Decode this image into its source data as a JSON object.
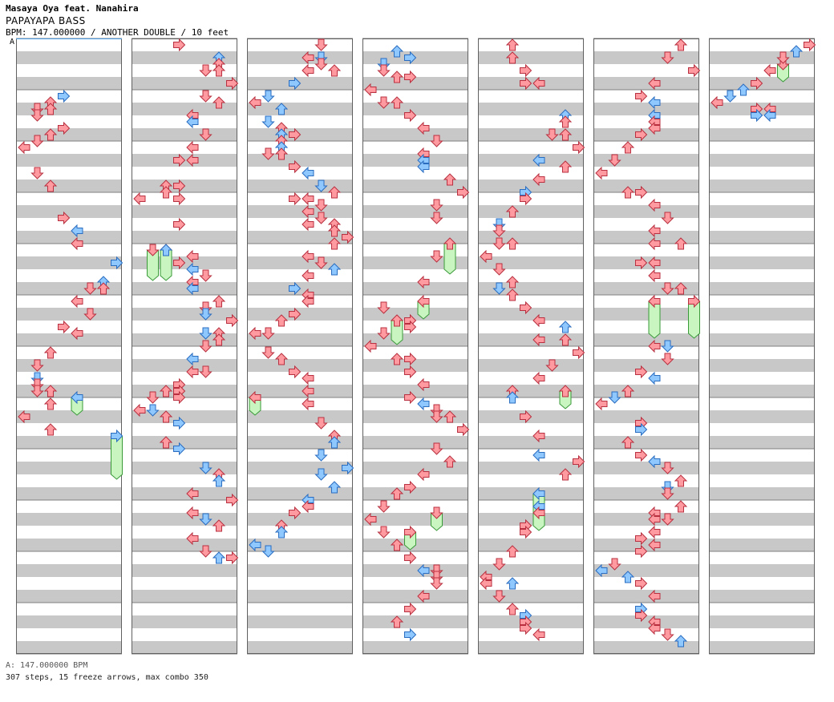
{
  "header": {
    "artist": "Masaya Oya feat. Nanahira",
    "title": "PAPAYAPA BASS",
    "info": "BPM: 147.000000 / ANOTHER DOUBLE / 10 feet",
    "bpm_marker": "A"
  },
  "footer": {
    "bpm_line": "A: 147.000000 BPM",
    "stats": "307 steps, 15 freeze arrows, max combo 350"
  },
  "colors": {
    "note_red": "#ff9aa0",
    "note_red_stroke": "#b83040",
    "note_blue": "#8ec8ff",
    "note_blue_stroke": "#2a6cc0",
    "freeze": "#c8f5c0",
    "freeze_stroke": "#3a9a3a",
    "band_gray": "#c8c8c8",
    "measure_line": "#808080"
  },
  "notes": [
    [
      0,
      8,
      3,
      "blue"
    ],
    [
      0,
      9,
      2,
      "red"
    ],
    [
      0,
      10,
      1,
      "red"
    ],
    [
      0,
      10,
      2,
      "red"
    ],
    [
      0,
      11,
      1,
      "red"
    ],
    [
      0,
      13,
      3,
      "red"
    ],
    [
      0,
      14,
      2,
      "red"
    ],
    [
      0,
      15,
      1,
      "red"
    ],
    [
      0,
      16,
      0,
      "red"
    ],
    [
      0,
      20,
      1,
      "red"
    ],
    [
      0,
      22,
      2,
      "red"
    ],
    [
      0,
      27,
      3,
      "red"
    ],
    [
      0,
      29,
      4,
      "blue"
    ],
    [
      0,
      31,
      4,
      "red"
    ],
    [
      0,
      34,
      7,
      "blue"
    ],
    [
      0,
      37,
      6,
      "blue"
    ],
    [
      0,
      38,
      5,
      "red"
    ],
    [
      0,
      38,
      6,
      "red"
    ],
    [
      0,
      40,
      4,
      "red"
    ],
    [
      0,
      42,
      5,
      "red"
    ],
    [
      0,
      44,
      3,
      "red"
    ],
    [
      0,
      45,
      4,
      "red"
    ],
    [
      0,
      48,
      2,
      "red"
    ],
    [
      0,
      50,
      1,
      "red"
    ],
    [
      0,
      52,
      1,
      "blue"
    ],
    [
      0,
      53,
      1,
      "red"
    ],
    [
      0,
      54,
      1,
      "red"
    ],
    [
      0,
      54,
      2,
      "red"
    ],
    [
      0,
      56,
      2,
      "red"
    ],
    [
      0,
      58,
      0,
      "red"
    ],
    [
      0,
      60,
      2,
      "red"
    ],
    [
      1,
      0,
      3,
      "red"
    ],
    [
      1,
      2,
      6,
      "blue"
    ],
    [
      1,
      3,
      6,
      "red"
    ],
    [
      1,
      4,
      5,
      "red"
    ],
    [
      1,
      4,
      6,
      "red"
    ],
    [
      1,
      6,
      7,
      "red"
    ],
    [
      1,
      8,
      5,
      "red"
    ],
    [
      1,
      9,
      6,
      "red"
    ],
    [
      1,
      11,
      4,
      "red"
    ],
    [
      1,
      12,
      4,
      "blue"
    ],
    [
      1,
      14,
      5,
      "red"
    ],
    [
      1,
      16,
      4,
      "red"
    ],
    [
      1,
      18,
      3,
      "red"
    ],
    [
      1,
      18,
      4,
      "red"
    ],
    [
      1,
      22,
      2,
      "red"
    ],
    [
      1,
      22,
      3,
      "red"
    ],
    [
      1,
      23,
      2,
      "red"
    ],
    [
      1,
      24,
      0,
      "red"
    ],
    [
      1,
      24,
      3,
      "red"
    ],
    [
      1,
      28,
      3,
      "red"
    ],
    [
      1,
      32,
      2,
      "blue"
    ],
    [
      1,
      33,
      4,
      "red"
    ],
    [
      1,
      34,
      3,
      "red"
    ],
    [
      1,
      35,
      4,
      "blue"
    ],
    [
      1,
      36,
      5,
      "red"
    ],
    [
      1,
      37,
      4,
      "red"
    ],
    [
      1,
      38,
      4,
      "blue"
    ],
    [
      1,
      40,
      6,
      "red"
    ],
    [
      1,
      41,
      5,
      "red"
    ],
    [
      1,
      42,
      5,
      "blue"
    ],
    [
      1,
      43,
      7,
      "red"
    ],
    [
      1,
      45,
      5,
      "blue"
    ],
    [
      1,
      45,
      6,
      "red"
    ],
    [
      1,
      46,
      6,
      "red"
    ],
    [
      1,
      47,
      5,
      "red"
    ],
    [
      1,
      49,
      4,
      "blue"
    ],
    [
      1,
      51,
      4,
      "red"
    ],
    [
      1,
      51,
      5,
      "red"
    ],
    [
      1,
      53,
      3,
      "red"
    ],
    [
      1,
      54,
      2,
      "red"
    ],
    [
      1,
      54,
      3,
      "red"
    ],
    [
      1,
      55,
      1,
      "red"
    ],
    [
      1,
      55,
      3,
      "red"
    ],
    [
      1,
      57,
      0,
      "red"
    ],
    [
      1,
      57,
      1,
      "blue"
    ],
    [
      1,
      58,
      2,
      "red"
    ],
    [
      1,
      59,
      3,
      "blue"
    ],
    [
      1,
      62,
      2,
      "red"
    ],
    [
      1,
      63,
      3,
      "blue"
    ],
    [
      1,
      66,
      5,
      "blue"
    ],
    [
      1,
      67,
      6,
      "red"
    ],
    [
      1,
      68,
      6,
      "blue"
    ],
    [
      1,
      70,
      4,
      "red"
    ],
    [
      1,
      71,
      7,
      "red"
    ],
    [
      1,
      73,
      4,
      "red"
    ],
    [
      1,
      74,
      5,
      "blue"
    ],
    [
      1,
      75,
      6,
      "red"
    ],
    [
      1,
      77,
      4,
      "red"
    ],
    [
      1,
      79,
      5,
      "red"
    ],
    [
      1,
      80,
      7,
      "red"
    ],
    [
      1,
      80,
      6,
      "blue"
    ],
    [
      2,
      0,
      5,
      "red"
    ],
    [
      2,
      2,
      4,
      "red"
    ],
    [
      2,
      2,
      5,
      "blue"
    ],
    [
      2,
      3,
      5,
      "red"
    ],
    [
      2,
      4,
      4,
      "red"
    ],
    [
      2,
      4,
      6,
      "red"
    ],
    [
      2,
      6,
      3,
      "blue"
    ],
    [
      2,
      8,
      1,
      "blue"
    ],
    [
      2,
      9,
      0,
      "red"
    ],
    [
      2,
      10,
      2,
      "blue"
    ],
    [
      2,
      12,
      1,
      "blue"
    ],
    [
      2,
      13,
      2,
      "red"
    ],
    [
      2,
      14,
      2,
      "blue"
    ],
    [
      2,
      14,
      3,
      "red"
    ],
    [
      2,
      15,
      2,
      "red"
    ],
    [
      2,
      16,
      2,
      "blue"
    ],
    [
      2,
      17,
      1,
      "red"
    ],
    [
      2,
      17,
      2,
      "red"
    ],
    [
      2,
      19,
      3,
      "red"
    ],
    [
      2,
      20,
      4,
      "blue"
    ],
    [
      2,
      22,
      5,
      "blue"
    ],
    [
      2,
      23,
      6,
      "red"
    ],
    [
      2,
      24,
      3,
      "red"
    ],
    [
      2,
      24,
      4,
      "red"
    ],
    [
      2,
      25,
      5,
      "red"
    ],
    [
      2,
      26,
      4,
      "red"
    ],
    [
      2,
      27,
      5,
      "red"
    ],
    [
      2,
      28,
      4,
      "red"
    ],
    [
      2,
      28,
      6,
      "red"
    ],
    [
      2,
      29,
      6,
      "red"
    ],
    [
      2,
      30,
      7,
      "red"
    ],
    [
      2,
      31,
      6,
      "red"
    ],
    [
      2,
      33,
      4,
      "red"
    ],
    [
      2,
      34,
      5,
      "red"
    ],
    [
      2,
      35,
      6,
      "blue"
    ],
    [
      2,
      36,
      4,
      "red"
    ],
    [
      2,
      38,
      3,
      "blue"
    ],
    [
      2,
      39,
      4,
      "red"
    ],
    [
      2,
      40,
      4,
      "red"
    ],
    [
      2,
      42,
      3,
      "red"
    ],
    [
      2,
      43,
      2,
      "red"
    ],
    [
      2,
      45,
      0,
      "red"
    ],
    [
      2,
      45,
      1,
      "red"
    ],
    [
      2,
      48,
      1,
      "red"
    ],
    [
      2,
      49,
      2,
      "red"
    ],
    [
      2,
      51,
      3,
      "red"
    ],
    [
      2,
      52,
      4,
      "red"
    ],
    [
      2,
      54,
      4,
      "red"
    ],
    [
      2,
      56,
      4,
      "red"
    ],
    [
      2,
      59,
      5,
      "red"
    ],
    [
      2,
      61,
      6,
      "red"
    ],
    [
      2,
      62,
      6,
      "blue"
    ],
    [
      2,
      64,
      5,
      "blue"
    ],
    [
      2,
      66,
      7,
      "blue"
    ],
    [
      2,
      67,
      5,
      "blue"
    ],
    [
      2,
      69,
      6,
      "blue"
    ],
    [
      2,
      71,
      4,
      "blue"
    ],
    [
      2,
      72,
      4,
      "red"
    ],
    [
      2,
      73,
      3,
      "red"
    ],
    [
      2,
      75,
      2,
      "red"
    ],
    [
      2,
      76,
      2,
      "blue"
    ],
    [
      2,
      78,
      0,
      "blue"
    ],
    [
      2,
      79,
      1,
      "blue"
    ],
    [
      3,
      1,
      2,
      "blue"
    ],
    [
      3,
      2,
      3,
      "blue"
    ],
    [
      3,
      3,
      1,
      "blue"
    ],
    [
      3,
      4,
      1,
      "red"
    ],
    [
      3,
      5,
      2,
      "red"
    ],
    [
      3,
      5,
      3,
      "red"
    ],
    [
      3,
      7,
      0,
      "red"
    ],
    [
      3,
      9,
      1,
      "red"
    ],
    [
      3,
      9,
      2,
      "red"
    ],
    [
      3,
      11,
      3,
      "red"
    ],
    [
      3,
      13,
      4,
      "red"
    ],
    [
      3,
      15,
      5,
      "red"
    ],
    [
      3,
      17,
      4,
      "red"
    ],
    [
      3,
      18,
      4,
      "blue"
    ],
    [
      3,
      19,
      4,
      "blue"
    ],
    [
      3,
      21,
      6,
      "red"
    ],
    [
      3,
      23,
      7,
      "red"
    ],
    [
      3,
      25,
      5,
      "red"
    ],
    [
      3,
      27,
      5,
      "red"
    ],
    [
      3,
      33,
      5,
      "red"
    ],
    [
      3,
      37,
      4,
      "red"
    ],
    [
      3,
      41,
      1,
      "red"
    ],
    [
      3,
      43,
      3,
      "red"
    ],
    [
      3,
      44,
      3,
      "red"
    ],
    [
      3,
      45,
      1,
      "red"
    ],
    [
      3,
      47,
      0,
      "red"
    ],
    [
      3,
      49,
      2,
      "red"
    ],
    [
      3,
      49,
      3,
      "red"
    ],
    [
      3,
      51,
      3,
      "red"
    ],
    [
      3,
      53,
      4,
      "red"
    ],
    [
      3,
      55,
      3,
      "red"
    ],
    [
      3,
      56,
      4,
      "blue"
    ],
    [
      3,
      57,
      5,
      "red"
    ],
    [
      3,
      58,
      5,
      "red"
    ],
    [
      3,
      58,
      6,
      "red"
    ],
    [
      3,
      60,
      7,
      "red"
    ],
    [
      3,
      63,
      5,
      "red"
    ],
    [
      3,
      65,
      6,
      "red"
    ],
    [
      3,
      67,
      4,
      "red"
    ],
    [
      3,
      69,
      3,
      "red"
    ],
    [
      3,
      70,
      2,
      "red"
    ],
    [
      3,
      72,
      1,
      "red"
    ],
    [
      3,
      74,
      0,
      "red"
    ],
    [
      3,
      76,
      1,
      "red"
    ],
    [
      3,
      78,
      2,
      "red"
    ],
    [
      3,
      80,
      3,
      "red"
    ],
    [
      3,
      82,
      4,
      "blue"
    ],
    [
      3,
      82,
      5,
      "red"
    ],
    [
      3,
      83,
      5,
      "red"
    ],
    [
      3,
      84,
      5,
      "red"
    ],
    [
      3,
      86,
      4,
      "red"
    ],
    [
      3,
      88,
      3,
      "red"
    ],
    [
      3,
      90,
      2,
      "red"
    ],
    [
      3,
      92,
      3,
      "blue"
    ],
    [
      4,
      0,
      2,
      "red"
    ],
    [
      4,
      2,
      2,
      "red"
    ],
    [
      4,
      4,
      3,
      "red"
    ],
    [
      4,
      6,
      3,
      "red"
    ],
    [
      4,
      6,
      4,
      "red"
    ],
    [
      4,
      11,
      6,
      "blue"
    ],
    [
      4,
      12,
      6,
      "red"
    ],
    [
      4,
      14,
      5,
      "red"
    ],
    [
      4,
      14,
      6,
      "red"
    ],
    [
      4,
      16,
      7,
      "red"
    ],
    [
      4,
      18,
      4,
      "blue"
    ],
    [
      4,
      19,
      6,
      "red"
    ],
    [
      4,
      21,
      4,
      "red"
    ],
    [
      4,
      23,
      3,
      "blue"
    ],
    [
      4,
      24,
      3,
      "red"
    ],
    [
      4,
      26,
      2,
      "red"
    ],
    [
      4,
      28,
      1,
      "blue"
    ],
    [
      4,
      29,
      1,
      "red"
    ],
    [
      4,
      31,
      1,
      "red"
    ],
    [
      4,
      31,
      2,
      "red"
    ],
    [
      4,
      33,
      0,
      "red"
    ],
    [
      4,
      35,
      1,
      "red"
    ],
    [
      4,
      37,
      2,
      "red"
    ],
    [
      4,
      38,
      1,
      "blue"
    ],
    [
      4,
      39,
      2,
      "red"
    ],
    [
      4,
      41,
      3,
      "red"
    ],
    [
      4,
      43,
      4,
      "red"
    ],
    [
      4,
      44,
      6,
      "blue"
    ],
    [
      4,
      46,
      4,
      "red"
    ],
    [
      4,
      46,
      6,
      "red"
    ],
    [
      4,
      48,
      7,
      "red"
    ],
    [
      4,
      50,
      5,
      "red"
    ],
    [
      4,
      52,
      4,
      "red"
    ],
    [
      4,
      54,
      2,
      "red"
    ],
    [
      4,
      55,
      2,
      "blue"
    ],
    [
      4,
      58,
      3,
      "red"
    ],
    [
      4,
      61,
      4,
      "red"
    ],
    [
      4,
      64,
      4,
      "blue"
    ],
    [
      4,
      65,
      7,
      "red"
    ],
    [
      4,
      67,
      6,
      "red"
    ],
    [
      4,
      72,
      4,
      "blue"
    ],
    [
      4,
      73,
      4,
      "red"
    ],
    [
      4,
      75,
      3,
      "red"
    ],
    [
      4,
      76,
      3,
      "red"
    ],
    [
      4,
      79,
      2,
      "red"
    ],
    [
      4,
      81,
      1,
      "red"
    ],
    [
      4,
      83,
      0,
      "red"
    ],
    [
      4,
      84,
      0,
      "red"
    ],
    [
      4,
      84,
      2,
      "blue"
    ],
    [
      4,
      86,
      1,
      "red"
    ],
    [
      4,
      88,
      2,
      "red"
    ],
    [
      4,
      89,
      3,
      "blue"
    ],
    [
      4,
      90,
      3,
      "red"
    ],
    [
      4,
      91,
      3,
      "red"
    ],
    [
      4,
      92,
      4,
      "red"
    ],
    [
      5,
      0,
      6,
      "red"
    ],
    [
      5,
      2,
      5,
      "red"
    ],
    [
      5,
      4,
      7,
      "red"
    ],
    [
      5,
      6,
      4,
      "red"
    ],
    [
      5,
      8,
      3,
      "red"
    ],
    [
      5,
      9,
      4,
      "blue"
    ],
    [
      5,
      11,
      4,
      "blue"
    ],
    [
      5,
      12,
      4,
      "red"
    ],
    [
      5,
      13,
      4,
      "red"
    ],
    [
      5,
      14,
      3,
      "red"
    ],
    [
      5,
      16,
      2,
      "red"
    ],
    [
      5,
      18,
      1,
      "red"
    ],
    [
      5,
      20,
      0,
      "red"
    ],
    [
      5,
      23,
      2,
      "red"
    ],
    [
      5,
      23,
      3,
      "red"
    ],
    [
      5,
      25,
      4,
      "red"
    ],
    [
      5,
      27,
      5,
      "red"
    ],
    [
      5,
      29,
      4,
      "red"
    ],
    [
      5,
      31,
      4,
      "red"
    ],
    [
      5,
      31,
      6,
      "red"
    ],
    [
      5,
      34,
      3,
      "red"
    ],
    [
      5,
      34,
      4,
      "red"
    ],
    [
      5,
      36,
      4,
      "red"
    ],
    [
      5,
      38,
      5,
      "red"
    ],
    [
      5,
      38,
      6,
      "red"
    ],
    [
      5,
      40,
      4,
      "red"
    ],
    [
      5,
      47,
      4,
      "red"
    ],
    [
      5,
      47,
      5,
      "blue"
    ],
    [
      5,
      49,
      5,
      "red"
    ],
    [
      5,
      51,
      3,
      "red"
    ],
    [
      5,
      52,
      4,
      "blue"
    ],
    [
      5,
      54,
      2,
      "red"
    ],
    [
      5,
      55,
      1,
      "blue"
    ],
    [
      5,
      56,
      0,
      "red"
    ],
    [
      5,
      59,
      3,
      "red"
    ],
    [
      5,
      60,
      3,
      "blue"
    ],
    [
      5,
      62,
      2,
      "red"
    ],
    [
      5,
      64,
      3,
      "red"
    ],
    [
      5,
      65,
      4,
      "blue"
    ],
    [
      5,
      66,
      5,
      "red"
    ],
    [
      5,
      68,
      6,
      "red"
    ],
    [
      5,
      69,
      5,
      "blue"
    ],
    [
      5,
      70,
      5,
      "red"
    ],
    [
      5,
      72,
      6,
      "red"
    ],
    [
      5,
      73,
      4,
      "red"
    ],
    [
      5,
      74,
      4,
      "red"
    ],
    [
      5,
      74,
      5,
      "red"
    ],
    [
      5,
      76,
      4,
      "red"
    ],
    [
      5,
      77,
      3,
      "red"
    ],
    [
      5,
      78,
      4,
      "red"
    ],
    [
      5,
      79,
      3,
      "red"
    ],
    [
      5,
      81,
      1,
      "red"
    ],
    [
      5,
      82,
      0,
      "blue"
    ],
    [
      5,
      83,
      2,
      "blue"
    ],
    [
      5,
      84,
      3,
      "red"
    ],
    [
      5,
      86,
      4,
      "red"
    ],
    [
      5,
      88,
      3,
      "blue"
    ],
    [
      5,
      89,
      3,
      "red"
    ],
    [
      5,
      90,
      4,
      "red"
    ],
    [
      5,
      91,
      4,
      "red"
    ],
    [
      5,
      92,
      5,
      "red"
    ],
    [
      5,
      93,
      6,
      "blue"
    ],
    [
      6,
      0,
      7,
      "red"
    ],
    [
      6,
      1,
      6,
      "blue"
    ],
    [
      6,
      2,
      5,
      "red"
    ],
    [
      6,
      4,
      4,
      "red"
    ],
    [
      6,
      6,
      3,
      "red"
    ],
    [
      6,
      7,
      2,
      "blue"
    ],
    [
      6,
      8,
      1,
      "blue"
    ],
    [
      6,
      9,
      0,
      "red"
    ],
    [
      6,
      10,
      3,
      "red"
    ],
    [
      6,
      10,
      4,
      "red"
    ],
    [
      6,
      11,
      3,
      "blue"
    ],
    [
      6,
      11,
      4,
      "blue"
    ]
  ],
  "freezes": [
    [
      0,
      55,
      4,
      57,
      "blue"
    ],
    [
      1,
      32,
      1,
      36,
      "red"
    ],
    [
      1,
      32,
      2,
      36,
      "red"
    ],
    [
      2,
      55,
      0,
      57,
      "red"
    ],
    [
      3,
      31,
      6,
      35,
      "red"
    ],
    [
      3,
      40,
      4,
      42,
      "red"
    ],
    [
      3,
      43,
      2,
      46,
      "red"
    ],
    [
      3,
      73,
      5,
      75,
      "red"
    ],
    [
      3,
      76,
      3,
      78,
      "red"
    ],
    [
      4,
      54,
      6,
      56,
      "red"
    ],
    [
      4,
      70,
      4,
      75,
      "blue"
    ],
    [
      5,
      40,
      4,
      45,
      "red"
    ],
    [
      5,
      40,
      7,
      45,
      "red"
    ],
    [
      0,
      61,
      7,
      67,
      "blue"
    ],
    [
      6,
      3,
      5,
      5,
      "red"
    ]
  ]
}
